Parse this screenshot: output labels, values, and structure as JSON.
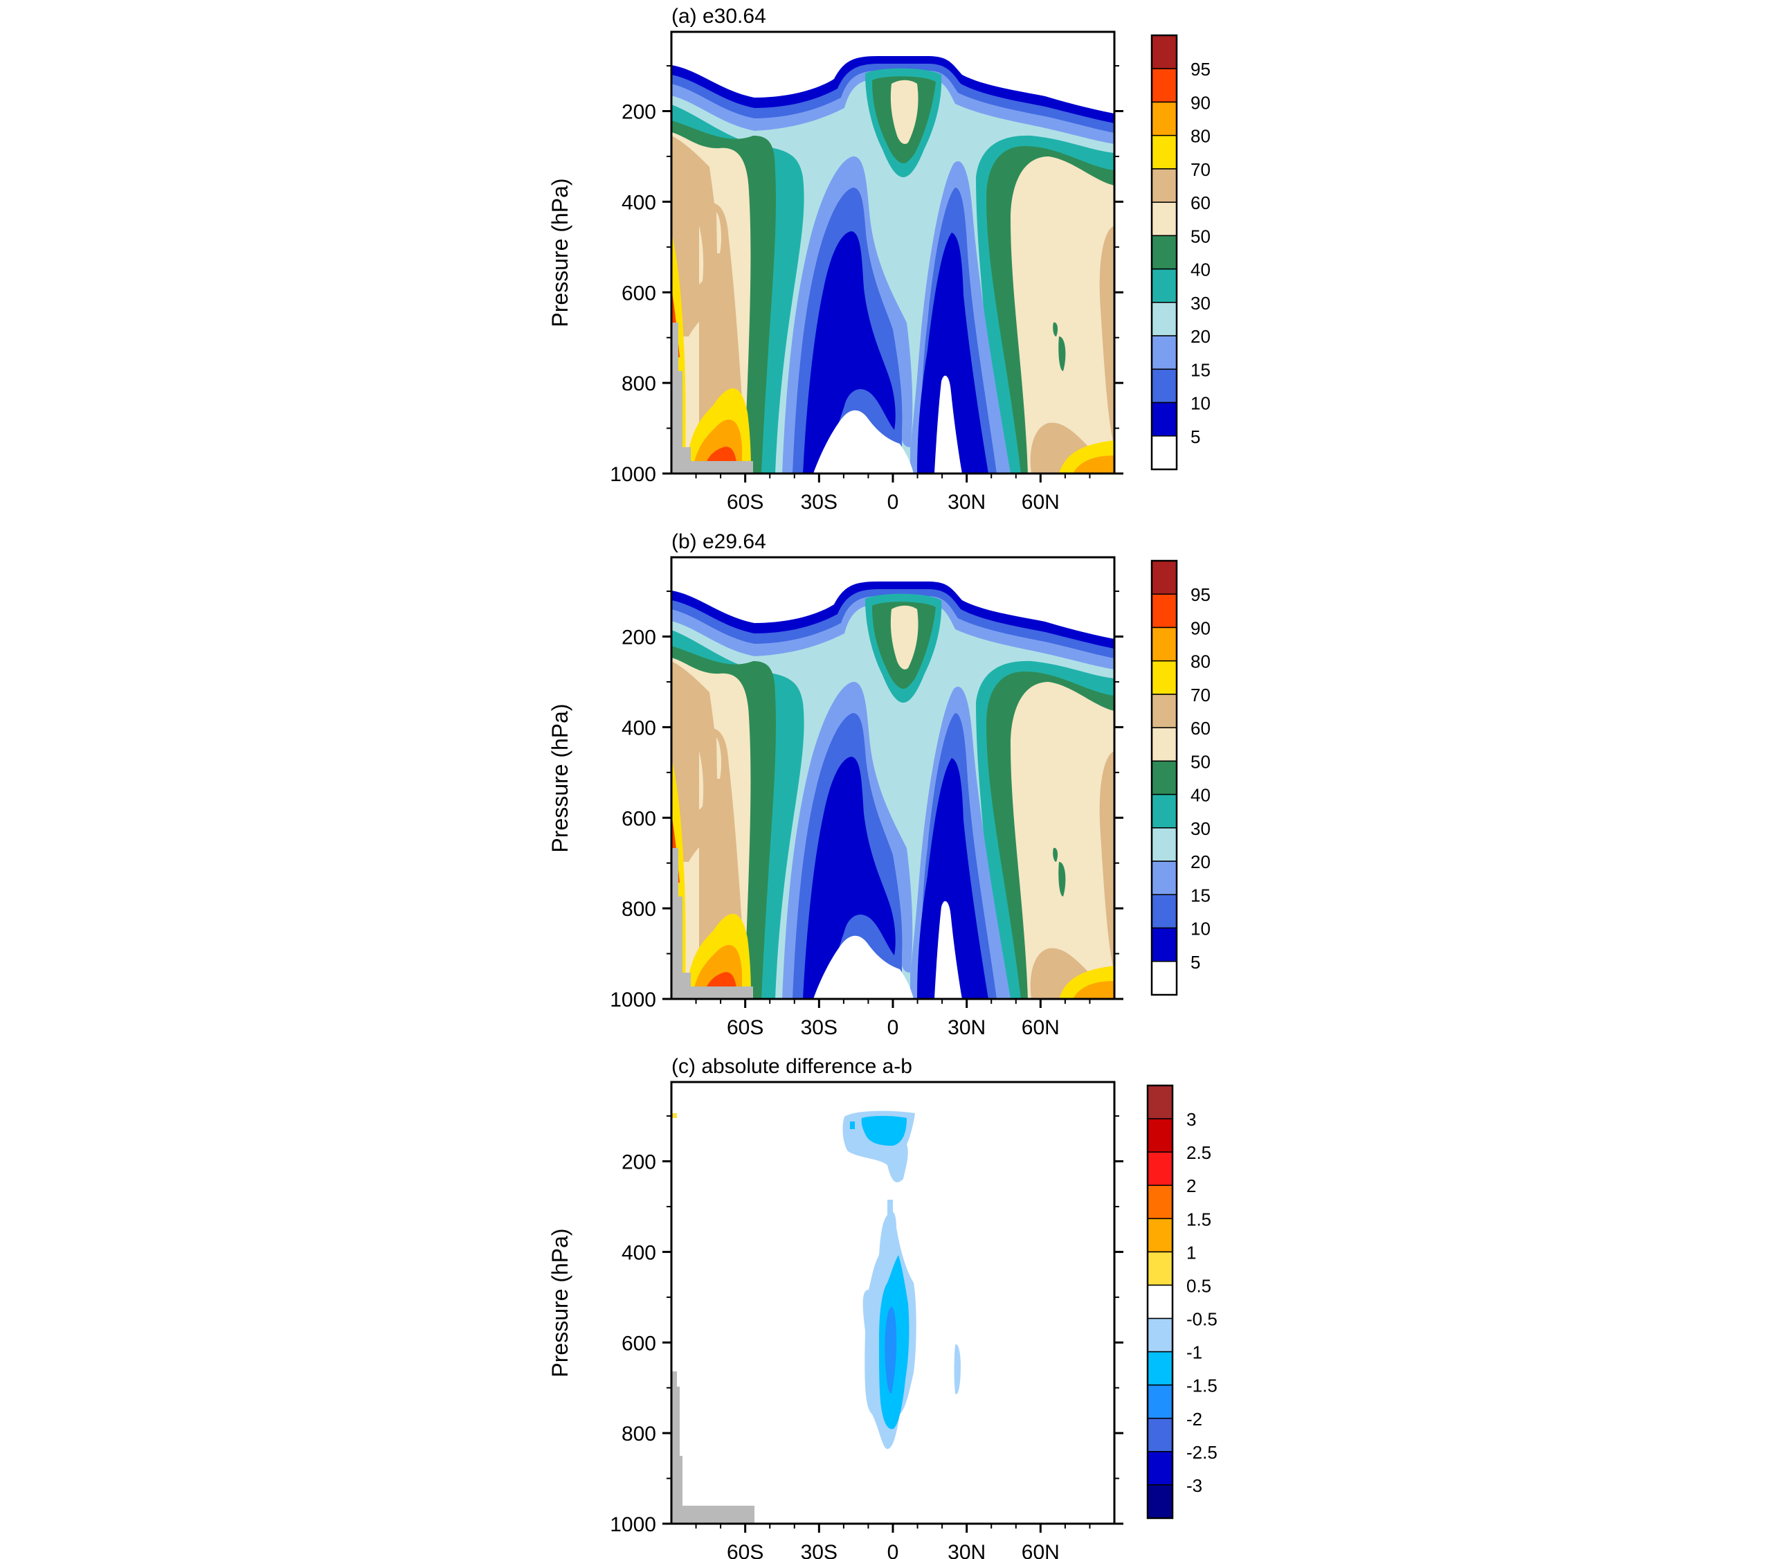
{
  "chart_data": [
    {
      "type": "heatmap",
      "title": "(a) e30.64",
      "ylabel": "Pressure (hPa)",
      "xlabel": "",
      "xticks": [
        "60S",
        "30S",
        "0",
        "30N",
        "60N"
      ],
      "xtick_lat": [
        -60,
        -30,
        0,
        30,
        60
      ],
      "yticks": [
        "200",
        "400",
        "600",
        "800",
        "1000"
      ],
      "ytick_values": [
        200,
        400,
        600,
        800,
        1000
      ],
      "xlim": [
        -90,
        90
      ],
      "ylim": [
        1000,
        25
      ],
      "y_reversed": true,
      "grid": false,
      "colorbar": {
        "labels": [
          "95",
          "90",
          "80",
          "70",
          "60",
          "50",
          "40",
          "30",
          "20",
          "15",
          "10",
          "5"
        ],
        "colors": [
          "#a8201f",
          "#ff4500",
          "#ffa500",
          "#ffe100",
          "#deb887",
          "#f5e6c4",
          "#2e8b57",
          "#20b2aa",
          "#b0e0e6",
          "#7b9ff0",
          "#4169e1",
          "#0000cd",
          "#ffffff"
        ]
      }
    },
    {
      "type": "heatmap",
      "title": "(b) e29.64",
      "ylabel": "Pressure (hPa)",
      "xlabel": "",
      "xticks": [
        "60S",
        "30S",
        "0",
        "30N",
        "60N"
      ],
      "xtick_lat": [
        -60,
        -30,
        0,
        30,
        60
      ],
      "yticks": [
        "200",
        "400",
        "600",
        "800",
        "1000"
      ],
      "ytick_values": [
        200,
        400,
        600,
        800,
        1000
      ],
      "xlim": [
        -90,
        90
      ],
      "ylim": [
        1000,
        25
      ],
      "y_reversed": true,
      "grid": false,
      "colorbar": {
        "labels": [
          "95",
          "90",
          "80",
          "70",
          "60",
          "50",
          "40",
          "30",
          "20",
          "15",
          "10",
          "5"
        ],
        "colors": [
          "#a8201f",
          "#ff4500",
          "#ffa500",
          "#ffe100",
          "#deb887",
          "#f5e6c4",
          "#2e8b57",
          "#20b2aa",
          "#b0e0e6",
          "#7b9ff0",
          "#4169e1",
          "#0000cd",
          "#ffffff"
        ]
      }
    },
    {
      "type": "heatmap",
      "title": "(c) absolute difference a-b",
      "ylabel": "Pressure (hPa)",
      "xlabel": "",
      "xticks": [
        "60S",
        "30S",
        "0",
        "30N",
        "60N"
      ],
      "xtick_lat": [
        -60,
        -30,
        0,
        30,
        60
      ],
      "yticks": [
        "200",
        "400",
        "600",
        "800",
        "1000"
      ],
      "ytick_values": [
        200,
        400,
        600,
        800,
        1000
      ],
      "xlim": [
        -90,
        90
      ],
      "ylim": [
        1000,
        25
      ],
      "y_reversed": true,
      "grid": false,
      "colorbar": {
        "labels": [
          "3",
          "2.5",
          "2",
          "1.5",
          "1",
          "0.5",
          "-0.5",
          "-1",
          "-1.5",
          "-2",
          "-2.5",
          "-3"
        ],
        "colors": [
          "#a52a2a",
          "#cc0000",
          "#ff1a1a",
          "#ff7000",
          "#ffaa00",
          "#ffe040",
          "#ffffff",
          "#a6d3fa",
          "#00bfff",
          "#1e90ff",
          "#4169e1",
          "#0000cd",
          "#00008b"
        ]
      }
    }
  ],
  "missing_color": "#b9b9b9"
}
